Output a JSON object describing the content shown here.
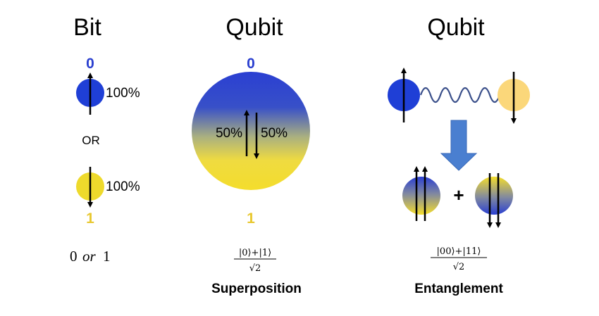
{
  "titles": {
    "bit": "Bit",
    "qubit_superposition": "Qubit",
    "qubit_entanglement": "Qubit"
  },
  "bit": {
    "zero_label": "0",
    "one_label": "1",
    "zero_percent": "100%",
    "one_percent": "100%",
    "or_label": "OR",
    "caption_left": "0",
    "caption_mid": "or",
    "caption_right": "1"
  },
  "superposition": {
    "zero_label": "0",
    "one_label": "1",
    "up_percent": "50%",
    "down_percent": "50%",
    "formula_numerator": "|0⟩+|1⟩",
    "formula_denominator": "√2",
    "caption": "Superposition"
  },
  "entanglement": {
    "plus": "+",
    "formula_numerator": "|00⟩+|11⟩",
    "formula_denominator": "√2",
    "caption": "Entanglement"
  },
  "colors": {
    "blue": "#1f3fd6",
    "yellow": "#f0dc3c",
    "arrow_blue": "#4a7fd0",
    "wave": "#3a4f8a",
    "zero_text": "#2a3fcf",
    "one_text": "#e8c830",
    "light_yellow": "#fbd77a"
  }
}
